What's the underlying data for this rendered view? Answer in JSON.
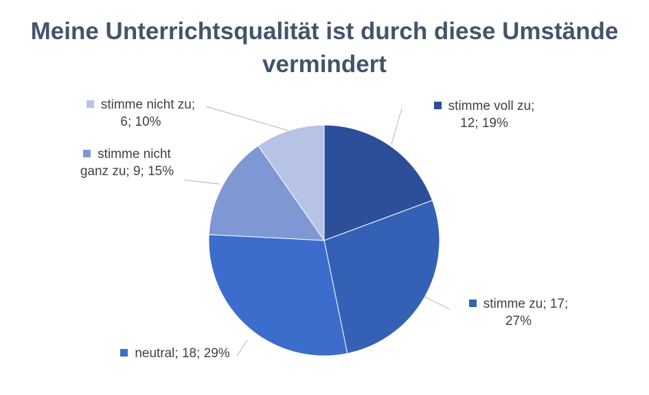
{
  "chart_data": {
    "type": "pie",
    "title": "Meine Unterrichtsqualität ist durch diese Umstände vermindert",
    "slices": [
      {
        "label": "stimme voll zu",
        "value": 12,
        "percent": "19%",
        "color": "#2d4f99"
      },
      {
        "label": "stimme zu",
        "value": 17,
        "percent": "27%",
        "color": "#3461b5"
      },
      {
        "label": "neutral",
        "value": 18,
        "percent": "29%",
        "color": "#3d6dcc"
      },
      {
        "label": "stimme nicht ganz zu",
        "value": 9,
        "percent": "15%",
        "color": "#7f97d3"
      },
      {
        "label": "stimme nicht zu",
        "value": 6,
        "percent": "10%",
        "color": "#b6c3e5"
      }
    ],
    "data_labels": [
      "stimme voll zu; 12; 19%",
      "stimme zu; 17; 27%",
      "neutral; 18; 29%",
      "stimme nicht ganz zu; 9; 15%",
      "stimme nicht zu; 6; 10%"
    ],
    "start_angle": "top",
    "direction": "clockwise"
  }
}
